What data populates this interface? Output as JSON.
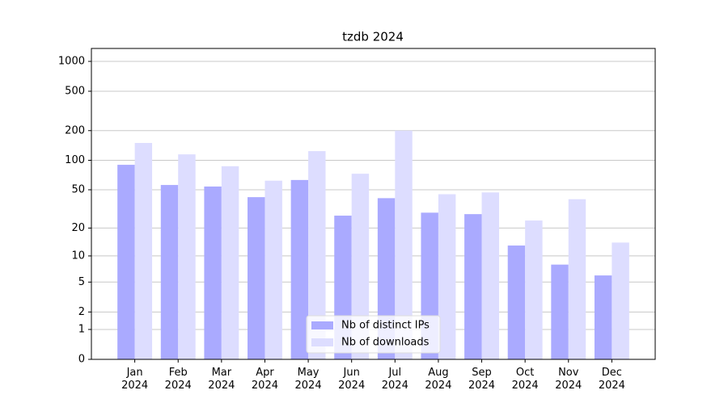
{
  "chart_data": {
    "type": "bar",
    "title": "tzdb 2024",
    "scale": "log1p",
    "categories": [
      "Jan\n2024",
      "Feb\n2024",
      "Mar\n2024",
      "Apr\n2024",
      "May\n2024",
      "Jun\n2024",
      "Jul\n2024",
      "Aug\n2024",
      "Sep\n2024",
      "Oct\n2024",
      "Nov\n2024",
      "Dec\n2024"
    ],
    "series": [
      {
        "name": "Nb of distinct IPs",
        "color": "#aaaaff",
        "values": [
          90,
          56,
          54,
          42,
          63,
          27,
          41,
          29,
          28,
          13,
          8,
          6
        ]
      },
      {
        "name": "Nb of downloads",
        "color": "#ddddff",
        "values": [
          150,
          115,
          87,
          62,
          124,
          73,
          200,
          45,
          47,
          24,
          40,
          14
        ]
      }
    ],
    "ylim": [
      0,
      1350
    ],
    "yticks": [
      0,
      1,
      2,
      5,
      10,
      20,
      50,
      100,
      200,
      500,
      1000
    ],
    "grid": true,
    "legend": "lower center"
  }
}
